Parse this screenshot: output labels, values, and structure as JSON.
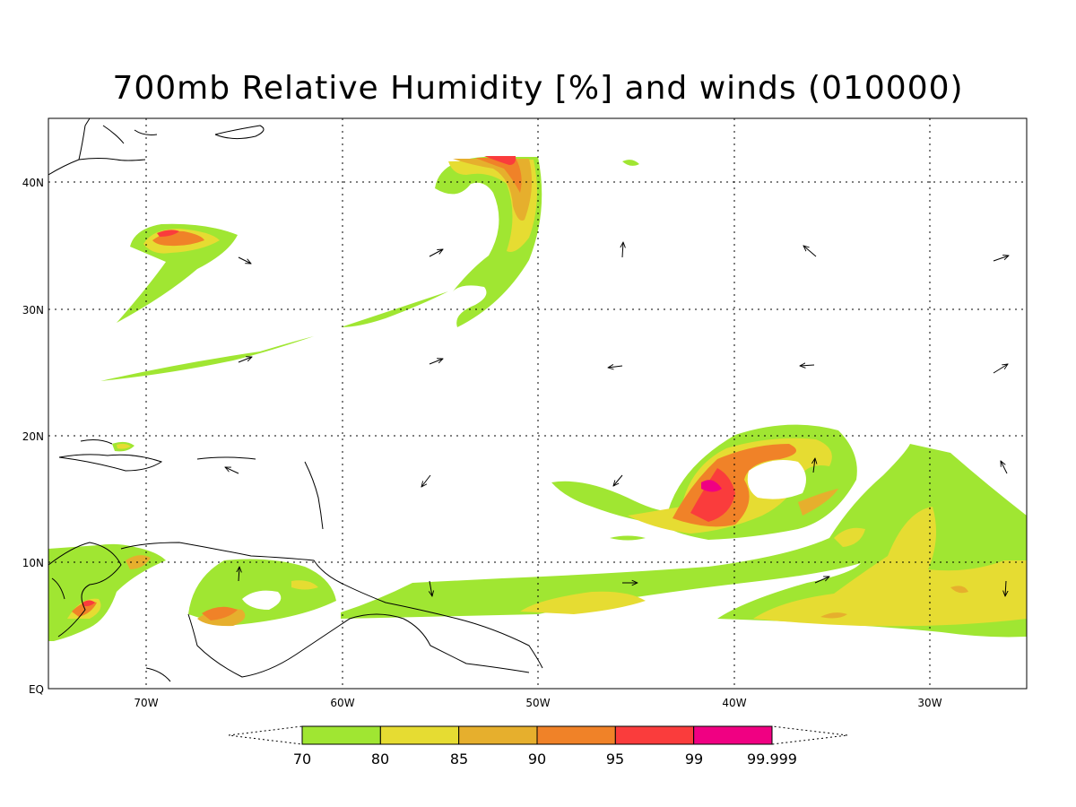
{
  "title": "700mb Relative Humidity [%] and winds (010000)",
  "map": {
    "lon_range": [
      -75,
      -25
    ],
    "lat_range": [
      0,
      45
    ],
    "lon_ticks": [
      "70W",
      "60W",
      "50W",
      "40W",
      "30W"
    ],
    "lat_ticks": [
      "EQ",
      "10N",
      "20N",
      "30N",
      "40N"
    ],
    "grid": "dotted"
  },
  "colorbar": {
    "colors": [
      "#a0e632",
      "#e6dc32",
      "#e6af2d",
      "#f08228",
      "#fa3c3c",
      "#f00082"
    ],
    "labels": [
      "70",
      "80",
      "85",
      "90",
      "95",
      "99",
      "99.999"
    ]
  }
}
